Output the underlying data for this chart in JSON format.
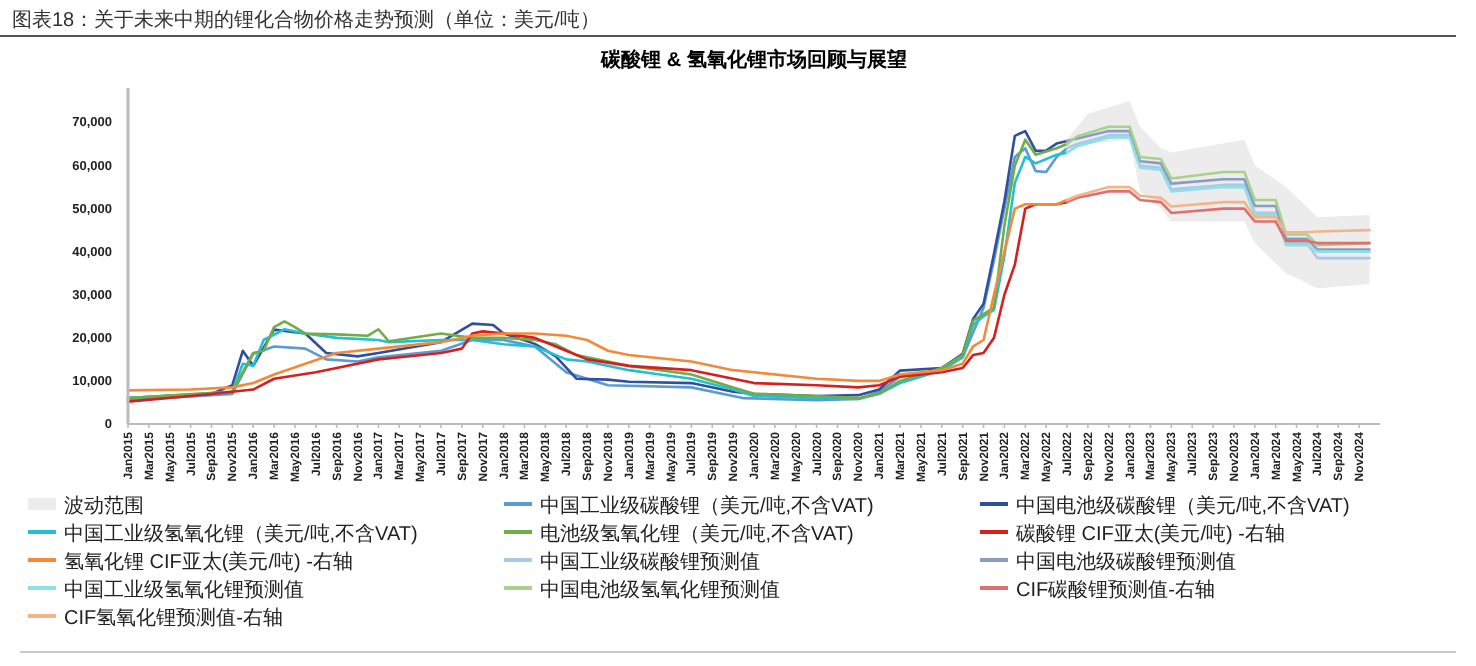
{
  "chart_data": {
    "type": "line",
    "subtitle": "图表18：关于未来中期的锂化合物价格走势预测（单位：美元/吨）",
    "title": "碳酸锂 & 氢氧化锂市场回顾与展望",
    "legend": "bottom",
    "xlim": [
      "2015-01",
      "2025-01"
    ],
    "ylim": [
      0,
      78000
    ],
    "yticks": [
      0,
      {
        "value": 10000,
        "label": "10,000"
      },
      {
        "value": 20000,
        "label": "20,000"
      },
      {
        "value": 30000,
        "label": "30,000"
      },
      {
        "value": 40000,
        "label": "40,000"
      },
      {
        "value": 50000,
        "label": "50,000"
      },
      {
        "value": 60000,
        "label": "60,000"
      },
      {
        "value": 70000,
        "label": "70,000"
      }
    ],
    "xticks": [
      {
        "value": "2015-01",
        "label": "Jan2015"
      },
      {
        "value": "2015-03",
        "label": "Mar2015"
      },
      {
        "value": "2015-05",
        "label": "May2015"
      },
      {
        "value": "2015-07",
        "label": "Jul2015"
      },
      {
        "value": "2015-09",
        "label": "Sep2015"
      },
      {
        "value": "2015-11",
        "label": "Nov2015"
      },
      {
        "value": "2016-01",
        "label": "Jan2016"
      },
      {
        "value": "2016-03",
        "label": "Mar2016"
      },
      {
        "value": "2016-05",
        "label": "May2016"
      },
      {
        "value": "2016-07",
        "label": "Jul2016"
      },
      {
        "value": "2016-09",
        "label": "Sep2016"
      },
      {
        "value": "2016-11",
        "label": "Nov2016"
      },
      {
        "value": "2017-01",
        "label": "Jan2017"
      },
      {
        "value": "2017-03",
        "label": "Mar2017"
      },
      {
        "value": "2017-05",
        "label": "May2017"
      },
      {
        "value": "2017-07",
        "label": "Jul2017"
      },
      {
        "value": "2017-09",
        "label": "Sep2017"
      },
      {
        "value": "2017-11",
        "label": "Nov2017"
      },
      {
        "value": "2018-01",
        "label": "Jan2018"
      },
      {
        "value": "2018-03",
        "label": "Mar2018"
      },
      {
        "value": "2018-05",
        "label": "May2018"
      },
      {
        "value": "2018-07",
        "label": "Jul2018"
      },
      {
        "value": "2018-09",
        "label": "Sep2018"
      },
      {
        "value": "2018-11",
        "label": "Nov2018"
      },
      {
        "value": "2019-01",
        "label": "Jan2019"
      },
      {
        "value": "2019-03",
        "label": "Mar2019"
      },
      {
        "value": "2019-05",
        "label": "May2019"
      },
      {
        "value": "2019-07",
        "label": "Jul2019"
      },
      {
        "value": "2019-09",
        "label": "Sep2019"
      },
      {
        "value": "2019-11",
        "label": "Nov2019"
      },
      {
        "value": "2020-01",
        "label": "Jan2020"
      },
      {
        "value": "2020-03",
        "label": "Mar2020"
      },
      {
        "value": "2020-05",
        "label": "May2020"
      },
      {
        "value": "2020-07",
        "label": "Jul2020"
      },
      {
        "value": "2020-09",
        "label": "Sep2020"
      },
      {
        "value": "2020-11",
        "label": "Nov2020"
      },
      {
        "value": "2021-01",
        "label": "Jan2021"
      },
      {
        "value": "2021-03",
        "label": "Mar2021"
      },
      {
        "value": "2021-05",
        "label": "May2021"
      },
      {
        "value": "2021-07",
        "label": "Jul2021"
      },
      {
        "value": "2021-09",
        "label": "Sep2021"
      },
      {
        "value": "2021-11",
        "label": "Nov2021"
      },
      {
        "value": "2022-01",
        "label": "Jan2022"
      },
      {
        "value": "2022-03",
        "label": "Mar2022"
      },
      {
        "value": "2022-05",
        "label": "May2022"
      },
      {
        "value": "2022-07",
        "label": "Jul2022"
      },
      {
        "value": "2022-09",
        "label": "Sep2022"
      },
      {
        "value": "2022-11",
        "label": "Nov2022"
      },
      {
        "value": "2023-01",
        "label": "Jan2023"
      },
      {
        "value": "2023-03",
        "label": "Mar2023"
      },
      {
        "value": "2023-05",
        "label": "May2023"
      },
      {
        "value": "2023-07",
        "label": "Jul2023"
      },
      {
        "value": "2023-09",
        "label": "Sep2023"
      },
      {
        "value": "2023-11",
        "label": "Nov2023"
      },
      {
        "value": "2024-01",
        "label": "Jan2024"
      },
      {
        "value": "2024-03",
        "label": "Mar2024"
      },
      {
        "value": "2024-05",
        "label": "May2024"
      },
      {
        "value": "2024-07",
        "label": "Jul2024"
      },
      {
        "value": "2024-09",
        "label": "Sep2024"
      },
      {
        "value": "2024-11",
        "label": "Nov2024"
      }
    ],
    "series": [
      {
        "name": "波动范围",
        "type": "area",
        "color": "#ececec",
        "x": [
          "2022-07",
          "2022-09",
          "2023-01",
          "2023-02",
          "2023-04",
          "2023-05",
          "2023-12",
          "2024-01",
          "2024-04",
          "2024-07",
          "2024-12"
        ],
        "values": [
          null,
          null,
          null,
          null,
          null,
          null,
          null,
          null,
          null,
          null,
          null
        ],
        "upper": [
          66000,
          72000,
          75000,
          69000,
          64000,
          63000,
          66000,
          60000,
          55000,
          48000,
          48500
        ],
        "lower": [
          64000,
          65000,
          66000,
          54000,
          50000,
          47000,
          47000,
          42000,
          35000,
          31500,
          32500
        ]
      },
      {
        "name": "中国工业级碳酸锂（美元/吨,不含VAT)",
        "color": "#5b9bd5",
        "x": [
          "2015-01",
          "2015-11",
          "2016-01",
          "2016-03",
          "2016-06",
          "2016-08",
          "2016-11",
          "2017-01",
          "2017-07",
          "2017-10",
          "2018-01",
          "2018-04",
          "2018-07",
          "2018-11",
          "2019-07",
          "2019-11",
          "2019-12",
          "2020-07",
          "2020-11",
          "2021-01",
          "2021-03",
          "2021-07",
          "2021-09",
          "2021-11",
          "2021-12",
          "2022-01",
          "2022-02",
          "2022-03",
          "2022-04",
          "2022-05",
          "2022-06",
          "2022-07"
        ],
        "values": [
          5500,
          7000,
          16300,
          18000,
          17500,
          15000,
          14500,
          15500,
          17000,
          19500,
          19500,
          18000,
          12000,
          9000,
          8500,
          6500,
          6000,
          5500,
          5800,
          7500,
          11000,
          12500,
          15500,
          27000,
          38000,
          50000,
          62000,
          64000,
          58700,
          58500,
          62000,
          64000
        ]
      },
      {
        "name": "中国电池级碳酸锂（美元/吨,不含VAT)",
        "color": "#2f4f9f",
        "x": [
          "2015-01",
          "2015-09",
          "2015-11",
          "2015-12",
          "2016-01",
          "2016-03",
          "2016-06",
          "2016-08",
          "2016-11",
          "2017-01",
          "2017-07",
          "2017-10",
          "2017-12",
          "2018-01",
          "2018-04",
          "2018-06",
          "2018-08",
          "2018-11",
          "2019-01",
          "2019-07",
          "2019-11",
          "2020-01",
          "2020-07",
          "2020-11",
          "2021-01",
          "2021-03",
          "2021-07",
          "2021-09",
          "2021-10",
          "2021-11",
          "2021-12",
          "2022-01",
          "2022-02",
          "2022-03",
          "2022-04",
          "2022-05",
          "2022-06",
          "2022-07"
        ],
        "values": [
          6000,
          7000,
          9000,
          17000,
          13500,
          21900,
          21000,
          16500,
          15700,
          16500,
          19000,
          23300,
          23000,
          21000,
          18600,
          15700,
          10500,
          10300,
          9800,
          9500,
          7500,
          7000,
          6500,
          6700,
          8000,
          12400,
          13000,
          16300,
          24400,
          27900,
          39500,
          51700,
          66900,
          68000,
          63400,
          63500,
          65100,
          65700
        ]
      },
      {
        "name": "中国工业级氢氧化锂（美元/吨,不含VAT)",
        "color": "#22c0d0",
        "x": [
          "2015-01",
          "2015-11",
          "2015-12",
          "2016-01",
          "2016-02",
          "2016-04",
          "2016-06",
          "2016-09",
          "2017-01",
          "2017-02",
          "2017-07",
          "2017-10",
          "2018-01",
          "2018-04",
          "2018-07",
          "2018-09",
          "2019-01",
          "2019-04",
          "2019-07",
          "2019-11",
          "2020-01",
          "2020-07",
          "2020-11",
          "2021-01",
          "2021-03",
          "2021-07",
          "2021-09",
          "2021-10",
          "2021-11",
          "2021-12",
          "2022-01",
          "2022-02",
          "2022-03",
          "2022-04",
          "2022-06",
          "2022-07"
        ],
        "values": [
          6000,
          7500,
          14000,
          13500,
          19500,
          22000,
          21000,
          20000,
          19500,
          19000,
          19500,
          19500,
          18500,
          18000,
          15000,
          14500,
          12500,
          11500,
          10500,
          8000,
          6500,
          6000,
          5800,
          7000,
          9500,
          12500,
          15500,
          23000,
          25000,
          26500,
          39000,
          56000,
          62000,
          60500,
          62500,
          63000
        ]
      },
      {
        "name": "电池级氢氧化锂（美元/吨,不含VAT)",
        "color": "#70ad47",
        "x": [
          "2015-01",
          "2015-11",
          "2016-01",
          "2016-02",
          "2016-03",
          "2016-04",
          "2016-05",
          "2016-06",
          "2016-09",
          "2016-12",
          "2017-01",
          "2017-02",
          "2017-07",
          "2017-10",
          "2018-01",
          "2018-04",
          "2018-06",
          "2018-08",
          "2018-11",
          "2019-01",
          "2019-04",
          "2019-07",
          "2019-11",
          "2020-01",
          "2020-07",
          "2020-11",
          "2021-01",
          "2021-03",
          "2021-07",
          "2021-09",
          "2021-10",
          "2021-11",
          "2021-12",
          "2022-01",
          "2022-02",
          "2022-03",
          "2022-04",
          "2022-06",
          "2022-07"
        ],
        "values": [
          6000,
          7500,
          16500,
          17000,
          22500,
          23800,
          22500,
          21000,
          20800,
          20500,
          22000,
          19200,
          21000,
          20000,
          20000,
          19500,
          18500,
          16000,
          14500,
          13500,
          12500,
          11500,
          8500,
          7000,
          6500,
          6000,
          7000,
          10000,
          13000,
          16000,
          24000,
          25500,
          27000,
          46000,
          60000,
          66000,
          62500,
          64000,
          65000
        ]
      },
      {
        "name": "碳酸锂 CIF亚太(美元/吨) -右轴",
        "color": "#d42020",
        "x": [
          "2015-01",
          "2015-07",
          "2015-11",
          "2016-01",
          "2016-03",
          "2016-07",
          "2016-09",
          "2017-01",
          "2017-07",
          "2017-09",
          "2017-10",
          "2017-11",
          "2018-01",
          "2018-04",
          "2018-07",
          "2018-09",
          "2019-01",
          "2019-07",
          "2019-11",
          "2020-01",
          "2020-07",
          "2020-11",
          "2021-01",
          "2021-03",
          "2021-07",
          "2021-09",
          "2021-10",
          "2021-11",
          "2021-12",
          "2022-01",
          "2022-02",
          "2022-03",
          "2022-04",
          "2022-06",
          "2022-07"
        ],
        "values": [
          5200,
          6500,
          7500,
          8000,
          10500,
          12000,
          13000,
          15000,
          16500,
          17500,
          21000,
          21500,
          21000,
          20000,
          17000,
          15000,
          13500,
          12500,
          10500,
          9500,
          9000,
          8500,
          9000,
          11000,
          12000,
          13000,
          16000,
          16500,
          20000,
          30000,
          37000,
          50000,
          51000,
          51000,
          51500
        ]
      },
      {
        "name": "氢氧化锂 CIF亚太(美元/吨) -右轴",
        "color": "#f28a3c",
        "x": [
          "2015-01",
          "2015-07",
          "2015-11",
          "2016-01",
          "2016-03",
          "2016-06",
          "2016-09",
          "2017-01",
          "2017-07",
          "2017-10",
          "2018-01",
          "2018-04",
          "2018-07",
          "2018-09",
          "2018-11",
          "2019-01",
          "2019-07",
          "2019-11",
          "2020-01",
          "2020-07",
          "2020-11",
          "2021-01",
          "2021-03",
          "2021-07",
          "2021-09",
          "2021-10",
          "2021-11",
          "2021-12",
          "2022-01",
          "2022-02",
          "2022-03",
          "2022-06",
          "2022-07"
        ],
        "values": [
          7800,
          8000,
          8500,
          9500,
          11500,
          14000,
          16500,
          17500,
          19000,
          20500,
          21000,
          21000,
          20500,
          19500,
          17000,
          16000,
          14500,
          12500,
          12000,
          10500,
          10000,
          10000,
          11500,
          12500,
          14000,
          18000,
          19500,
          30000,
          40000,
          50000,
          51000,
          51000,
          52000
        ]
      },
      {
        "name": "中国工业级碳酸锂预测值",
        "color": "#a9c8ea",
        "x": [
          "2022-07",
          "2022-08",
          "2022-11",
          "2023-01",
          "2023-02",
          "2023-04",
          "2023-05",
          "2023-10",
          "2023-12",
          "2024-01",
          "2024-03",
          "2024-04",
          "2024-06",
          "2024-07",
          "2024-12"
        ],
        "values": [
          64000,
          65000,
          67000,
          67000,
          60000,
          59500,
          54500,
          55500,
          55500,
          49000,
          49000,
          42000,
          42000,
          38500,
          38500
        ]
      },
      {
        "name": "中国电池级碳酸锂预测值",
        "color": "#8a9cc2",
        "x": [
          "2022-07",
          "2022-08",
          "2022-11",
          "2023-01",
          "2023-02",
          "2023-04",
          "2023-05",
          "2023-10",
          "2023-12",
          "2024-01",
          "2024-03",
          "2024-04",
          "2024-06",
          "2024-07",
          "2024-12"
        ],
        "values": [
          65700,
          66300,
          68000,
          68000,
          61000,
          60500,
          55800,
          56800,
          56800,
          50600,
          50600,
          43000,
          43000,
          40500,
          40500
        ]
      },
      {
        "name": "中国工业级氢氧化锂预测值",
        "color": "#8fe0e6",
        "x": [
          "2022-07",
          "2022-08",
          "2022-11",
          "2023-01",
          "2023-02",
          "2023-04",
          "2023-05",
          "2023-10",
          "2023-12",
          "2024-01",
          "2024-03",
          "2024-04",
          "2024-06",
          "2024-07",
          "2024-12"
        ],
        "values": [
          63000,
          64500,
          66500,
          66500,
          59500,
          59000,
          54000,
          55000,
          55000,
          48500,
          48500,
          41500,
          41500,
          40000,
          40000
        ]
      },
      {
        "name": "中国电池级氢氧化锂预测值",
        "color": "#a9d18e",
        "x": [
          "2022-07",
          "2022-08",
          "2022-11",
          "2023-01",
          "2023-02",
          "2023-04",
          "2023-05",
          "2023-10",
          "2023-12",
          "2024-01",
          "2024-03",
          "2024-04",
          "2024-06",
          "2024-07",
          "2024-12"
        ],
        "values": [
          65000,
          66800,
          69000,
          69000,
          62000,
          61500,
          57000,
          58500,
          58500,
          52000,
          52000,
          44000,
          44000,
          41500,
          42000
        ]
      },
      {
        "name": "CIF碳酸锂预测值-右轴",
        "color": "#e07070",
        "x": [
          "2022-07",
          "2022-08",
          "2022-11",
          "2023-01",
          "2023-02",
          "2023-04",
          "2023-05",
          "2023-10",
          "2023-12",
          "2024-01",
          "2024-03",
          "2024-04",
          "2024-06",
          "2024-07",
          "2024-12"
        ],
        "values": [
          51500,
          52500,
          54000,
          54000,
          52000,
          51500,
          49000,
          50000,
          50000,
          47000,
          47000,
          42500,
          42500,
          42000,
          42000
        ]
      },
      {
        "name": "CIF氢氧化锂预测值-右轴",
        "color": "#f5b38a",
        "x": [
          "2022-07",
          "2022-08",
          "2022-11",
          "2023-01",
          "2023-02",
          "2023-04",
          "2023-05",
          "2023-10",
          "2023-12",
          "2024-01",
          "2024-03",
          "2024-04",
          "2024-06",
          "2024-07",
          "2024-12"
        ],
        "values": [
          52000,
          53000,
          55000,
          55000,
          53000,
          52500,
          50500,
          51500,
          51500,
          48000,
          48000,
          44500,
          44500,
          44700,
          45000
        ]
      }
    ]
  }
}
